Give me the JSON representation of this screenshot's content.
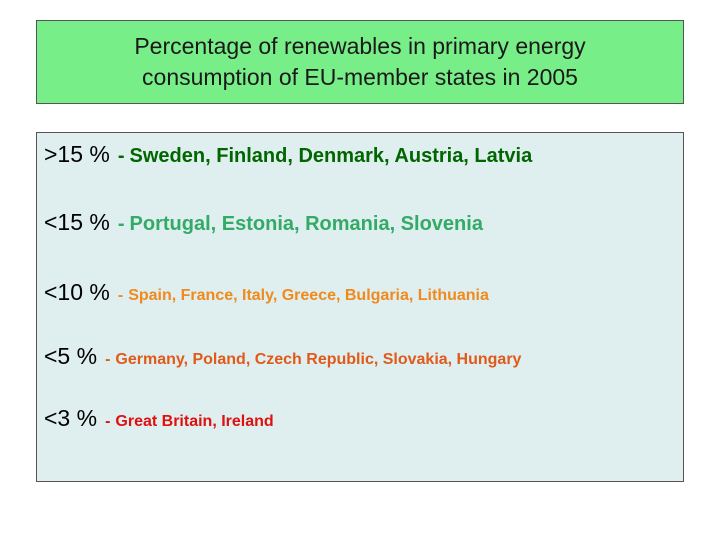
{
  "title": {
    "line1": "Percentage of renewables in primary energy",
    "line2": "consumption of EU-member states in 2005"
  },
  "rows": [
    {
      "range": ">15 %",
      "separator": "-",
      "countries": "Sweden, Finland, Denmark, Austria, Latvia",
      "color": "#006600"
    },
    {
      "range": "<15 %",
      "separator": "-",
      "countries": "Portugal, Estonia, Romania, Slovenia",
      "color": "#33aa66"
    },
    {
      "range": "<10 %",
      "separator": "-",
      "countries": "Spain, France, Italy, Greece, Bulgaria, Lithuania",
      "color": "#f08a1c"
    },
    {
      "range": "<5 %",
      "separator": "-",
      "countries": "Germany, Poland, Czech Republic, Slovakia, Hungary",
      "color": "#e05a1a"
    },
    {
      "range": "<3 %",
      "separator": "-",
      "countries": "Great Britain, Ireland",
      "color": "#e01010"
    }
  ],
  "colors": {
    "title_background": "#77ee88",
    "content_background": "#dfeeee"
  }
}
